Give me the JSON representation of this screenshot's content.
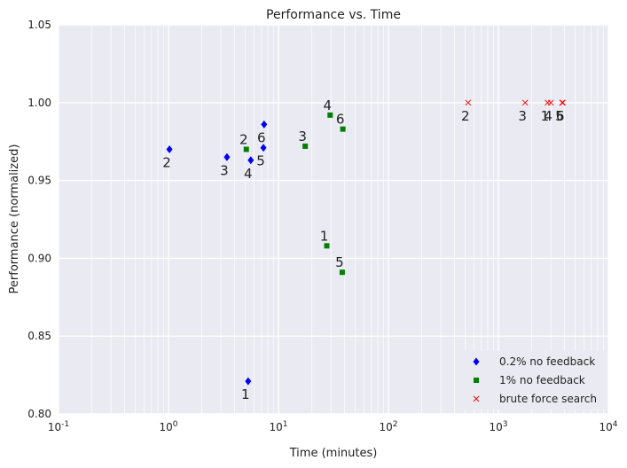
{
  "chart_data": {
    "type": "scatter",
    "title": "Performance vs. Time",
    "xlabel": "Time (minutes)",
    "ylabel": "Performance (normalized)",
    "xscale": "log",
    "xlim": [
      0.1,
      10000
    ],
    "ylim": [
      0.8,
      1.05
    ],
    "grid": true,
    "legend_position": "bottom-right",
    "x_ticks": [
      {
        "value": 0.1,
        "base": "10",
        "exp": "-1"
      },
      {
        "value": 1,
        "base": "10",
        "exp": "0"
      },
      {
        "value": 10,
        "base": "10",
        "exp": "1"
      },
      {
        "value": 100,
        "base": "10",
        "exp": "2"
      },
      {
        "value": 1000,
        "base": "10",
        "exp": "3"
      },
      {
        "value": 10000,
        "base": "10",
        "exp": "4"
      }
    ],
    "y_ticks": [
      {
        "value": 0.8,
        "label": "0.80"
      },
      {
        "value": 0.85,
        "label": "0.85"
      },
      {
        "value": 0.9,
        "label": "0.90"
      },
      {
        "value": 0.95,
        "label": "0.95"
      },
      {
        "value": 1.0,
        "label": "1.00"
      },
      {
        "value": 1.05,
        "label": "1.05"
      }
    ],
    "series": [
      {
        "name": "0.2% no feedback",
        "marker": "diamond",
        "color": "#0000ff",
        "points": [
          {
            "x": 5.3,
            "y": 0.821,
            "label": "1",
            "label_pos": "below"
          },
          {
            "x": 1.02,
            "y": 0.97,
            "label": "2",
            "label_pos": "below"
          },
          {
            "x": 3.4,
            "y": 0.965,
            "label": "3",
            "label_pos": "below"
          },
          {
            "x": 5.6,
            "y": 0.963,
            "label": "4",
            "label_pos": "below"
          },
          {
            "x": 7.3,
            "y": 0.971,
            "label": "5",
            "label_pos": "below"
          },
          {
            "x": 7.4,
            "y": 0.986,
            "label": "6",
            "label_pos": "below"
          }
        ]
      },
      {
        "name": "1% no feedback",
        "marker": "square",
        "color": "#008000",
        "points": [
          {
            "x": 27.5,
            "y": 0.908,
            "label": "1",
            "label_pos": "above"
          },
          {
            "x": 5.1,
            "y": 0.97,
            "label": "2",
            "label_pos": "above"
          },
          {
            "x": 17.5,
            "y": 0.972,
            "label": "3",
            "label_pos": "above"
          },
          {
            "x": 29.5,
            "y": 0.992,
            "label": "4",
            "label_pos": "above"
          },
          {
            "x": 38,
            "y": 0.891,
            "label": "5",
            "label_pos": "above"
          },
          {
            "x": 38.5,
            "y": 0.983,
            "label": "6",
            "label_pos": "above"
          }
        ]
      },
      {
        "name": "brute force search",
        "marker": "x",
        "color": "#ff0000",
        "points": [
          {
            "x": 530,
            "y": 1.0,
            "label": "2",
            "label_pos": "below"
          },
          {
            "x": 1750,
            "y": 1.0,
            "label": "3",
            "label_pos": "below"
          },
          {
            "x": 2800,
            "y": 1.0,
            "label": "1",
            "label_pos": "below"
          },
          {
            "x": 3000,
            "y": 1.0,
            "label": "4",
            "label_pos": "below"
          },
          {
            "x": 3800,
            "y": 1.0,
            "label": "5",
            "label_pos": "below"
          },
          {
            "x": 3850,
            "y": 1.0,
            "label": "6",
            "label_pos": "below"
          }
        ]
      }
    ]
  }
}
